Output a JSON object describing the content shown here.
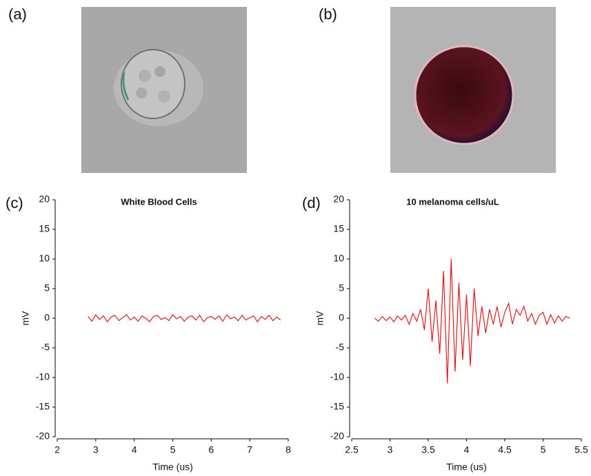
{
  "panel_labels": [
    "(a)",
    "(b)",
    "(c)",
    "(d)"
  ],
  "chart_data": [
    {
      "type": "line",
      "title": "White Blood Cells",
      "x_label": "Time (us)",
      "y_label": "mV",
      "xlim": [
        2,
        8
      ],
      "xticks": [
        2,
        3,
        4,
        5,
        6,
        7,
        8
      ],
      "ylim": [
        -20,
        20
      ],
      "yticks": [
        -20,
        -15,
        -10,
        -5,
        0,
        5,
        10,
        15,
        20
      ],
      "x": [
        2.8,
        2.9,
        3.0,
        3.1,
        3.2,
        3.3,
        3.4,
        3.5,
        3.6,
        3.7,
        3.8,
        3.9,
        4.0,
        4.1,
        4.2,
        4.3,
        4.4,
        4.5,
        4.6,
        4.7,
        4.8,
        4.9,
        5.0,
        5.1,
        5.2,
        5.3,
        5.4,
        5.5,
        5.6,
        5.7,
        5.8,
        5.9,
        6.0,
        6.1,
        6.2,
        6.3,
        6.4,
        6.5,
        6.6,
        6.7,
        6.8,
        6.9,
        7.0,
        7.1,
        7.2,
        7.3,
        7.4,
        7.5,
        7.6,
        7.7,
        7.8
      ],
      "series": [
        {
          "color": "#e01818",
          "values": [
            0.3,
            -0.5,
            0.6,
            -0.2,
            0.4,
            -0.6,
            0.2,
            0.5,
            -0.4,
            0.1,
            0.6,
            -0.3,
            0.2,
            -0.5,
            0.4,
            0.0,
            -0.6,
            0.3,
            0.5,
            -0.2,
            0.1,
            -0.4,
            0.6,
            -0.1,
            0.3,
            -0.5,
            0.2,
            0.4,
            -0.3,
            0.5,
            -0.6,
            0.1,
            0.3,
            -0.2,
            0.4,
            -0.5,
            0.6,
            -0.1,
            0.2,
            -0.4,
            0.5,
            -0.3,
            0.1,
            0.4,
            -0.6,
            0.3,
            -0.2,
            0.5,
            -0.4,
            0.2,
            -0.3
          ]
        }
      ]
    },
    {
      "type": "line",
      "title": "10 melanoma cells/uL",
      "x_label": "Time (us)",
      "y_label": "mV",
      "xlim": [
        2.5,
        5.5
      ],
      "xticks": [
        2.5,
        3,
        3.5,
        4,
        4.5,
        5,
        5.5
      ],
      "ylim": [
        -20,
        20
      ],
      "yticks": [
        -20,
        -15,
        -10,
        -5,
        0,
        5,
        10,
        15,
        20
      ],
      "x": [
        2.8,
        2.85,
        2.9,
        2.95,
        3.0,
        3.05,
        3.1,
        3.15,
        3.2,
        3.25,
        3.3,
        3.35,
        3.4,
        3.45,
        3.5,
        3.55,
        3.6,
        3.65,
        3.7,
        3.75,
        3.8,
        3.85,
        3.9,
        3.95,
        4.0,
        4.05,
        4.1,
        4.15,
        4.2,
        4.25,
        4.3,
        4.35,
        4.4,
        4.45,
        4.5,
        4.55,
        4.6,
        4.65,
        4.7,
        4.75,
        4.8,
        4.85,
        4.9,
        4.95,
        5.0,
        5.05,
        5.1,
        5.15,
        5.2,
        5.25,
        5.3,
        5.35
      ],
      "series": [
        {
          "color": "#e01818",
          "values": [
            0,
            -0.5,
            0.3,
            -0.4,
            0.2,
            -0.6,
            0.4,
            -0.3,
            0.5,
            -1,
            0.8,
            -0.5,
            1.5,
            -2,
            5,
            -4,
            3,
            -6,
            8,
            -11,
            10,
            -9,
            6,
            -7,
            4,
            -8,
            5,
            -3,
            2,
            -2.5,
            1.5,
            -1,
            2,
            -1.5,
            1,
            2.5,
            -1,
            1.5,
            0.5,
            2,
            -0.5,
            0.8,
            -1,
            0.5,
            1,
            -1,
            0.6,
            -0.8,
            0.4,
            -0.5,
            0.3,
            0
          ]
        }
      ]
    }
  ]
}
